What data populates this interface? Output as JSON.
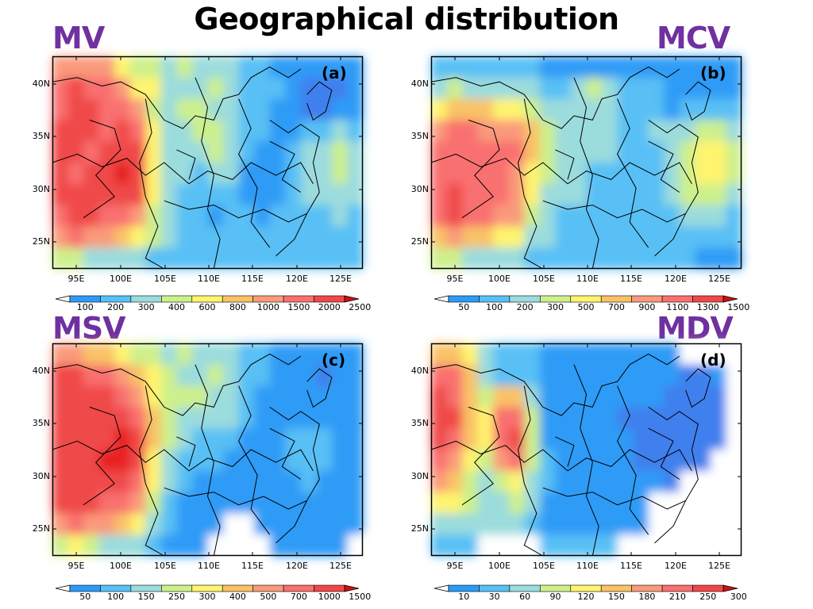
{
  "page": {
    "title": "Geographical distribution"
  },
  "colors": {
    "label": "#7030a0"
  },
  "lat_ticks": [
    "40N",
    "35N",
    "30N",
    "25N"
  ],
  "lon_ticks": [
    "95E",
    "100E",
    "105E",
    "110E",
    "115E",
    "120E",
    "125E"
  ],
  "panels": [
    {
      "id": "a",
      "var_label": "MV",
      "panel_tag": "(a)",
      "colorbar": {
        "ticks": [
          "100",
          "200",
          "300",
          "400",
          "600",
          "800",
          "1000",
          "1500",
          "2000",
          "2500"
        ]
      },
      "colors": [
        "#3f7fee",
        "#2d9bf6",
        "#59c0f5",
        "#9bdcdd",
        "#cdf08b",
        "#fff46e",
        "#f9c266",
        "#fa9a7c",
        "#f97070",
        "#f04848",
        "#e82020"
      ],
      "below_color": "#3b5cd6",
      "above_color": "#d01010",
      "field": [
        [
          7,
          7,
          7,
          7,
          5,
          4,
          4,
          3,
          4,
          3,
          3,
          3,
          2,
          2,
          1,
          1,
          1,
          1,
          1,
          1
        ],
        [
          8,
          9,
          8,
          8,
          7,
          5,
          5,
          3,
          3,
          3,
          4,
          3,
          2,
          2,
          2,
          1,
          0,
          0,
          0,
          1
        ],
        [
          8,
          9,
          9,
          8,
          8,
          7,
          4,
          3,
          4,
          4,
          3,
          3,
          2,
          2,
          1,
          1,
          0,
          0,
          1,
          1
        ],
        [
          9,
          9,
          9,
          8,
          9,
          8,
          5,
          3,
          3,
          4,
          4,
          3,
          2,
          2,
          1,
          1,
          2,
          2,
          3,
          2
        ],
        [
          9,
          9,
          8,
          9,
          9,
          9,
          5,
          3,
          3,
          3,
          4,
          3,
          2,
          1,
          1,
          2,
          3,
          3,
          4,
          3
        ],
        [
          9,
          8,
          9,
          9,
          10,
          9,
          5,
          3,
          3,
          2,
          3,
          3,
          1,
          1,
          1,
          2,
          3,
          3,
          4,
          3
        ],
        [
          9,
          9,
          9,
          9,
          9,
          9,
          5,
          3,
          2,
          2,
          2,
          2,
          1,
          1,
          1,
          2,
          3,
          3,
          3,
          3
        ],
        [
          8,
          9,
          9,
          8,
          8,
          7,
          4,
          3,
          2,
          2,
          1,
          2,
          2,
          1,
          2,
          2,
          2,
          2,
          3,
          2
        ],
        [
          7,
          8,
          7,
          7,
          6,
          5,
          4,
          3,
          2,
          2,
          2,
          2,
          2,
          2,
          2,
          2,
          2,
          2,
          2,
          2
        ],
        [
          4,
          4,
          3,
          3,
          3,
          3,
          2,
          2,
          2,
          2,
          2,
          2,
          2,
          2,
          2,
          2,
          2,
          2,
          2,
          2
        ]
      ]
    },
    {
      "id": "b",
      "var_label": "MCV",
      "panel_tag": "(b)",
      "colorbar": {
        "ticks": [
          "50",
          "100",
          "200",
          "300",
          "500",
          "700",
          "900",
          "1100",
          "1300",
          "1500"
        ]
      },
      "colors": [
        "#3f7fee",
        "#2d9bf6",
        "#59c0f5",
        "#9bdcdd",
        "#cdf08b",
        "#fff46e",
        "#f9c266",
        "#fa9a7c",
        "#f97070",
        "#f04848",
        "#e82020"
      ],
      "below_color": "#3b5cd6",
      "above_color": "#d01010",
      "field": [
        [
          2,
          2,
          2,
          2,
          2,
          2,
          2,
          1,
          1,
          1,
          1,
          1,
          1,
          1,
          1,
          1,
          1,
          1,
          1,
          1
        ],
        [
          3,
          4,
          3,
          3,
          3,
          3,
          3,
          2,
          2,
          3,
          4,
          3,
          2,
          2,
          2,
          1,
          1,
          1,
          1,
          1
        ],
        [
          5,
          6,
          6,
          6,
          5,
          5,
          4,
          3,
          3,
          3,
          3,
          3,
          2,
          2,
          2,
          1,
          2,
          2,
          2,
          2
        ],
        [
          7,
          8,
          8,
          7,
          7,
          7,
          6,
          4,
          3,
          3,
          3,
          3,
          2,
          2,
          3,
          3,
          3,
          4,
          4,
          3
        ],
        [
          8,
          8,
          8,
          8,
          8,
          8,
          6,
          4,
          3,
          3,
          3,
          3,
          2,
          2,
          2,
          3,
          4,
          5,
          5,
          4
        ],
        [
          8,
          8,
          8,
          8,
          8,
          7,
          5,
          4,
          3,
          3,
          2,
          2,
          2,
          2,
          2,
          3,
          4,
          5,
          5,
          4
        ],
        [
          8,
          9,
          8,
          8,
          8,
          7,
          5,
          3,
          3,
          3,
          2,
          2,
          2,
          2,
          2,
          3,
          4,
          4,
          4,
          3
        ],
        [
          8,
          9,
          8,
          8,
          7,
          7,
          4,
          3,
          2,
          2,
          2,
          2,
          2,
          2,
          2,
          2,
          3,
          3,
          3,
          2
        ],
        [
          6,
          7,
          6,
          6,
          5,
          5,
          3,
          3,
          2,
          2,
          2,
          2,
          2,
          2,
          2,
          2,
          2,
          2,
          2,
          2
        ],
        [
          4,
          4,
          3,
          3,
          3,
          3,
          2,
          2,
          2,
          2,
          2,
          2,
          2,
          2,
          2,
          2,
          2,
          1,
          1,
          1
        ]
      ]
    },
    {
      "id": "c",
      "var_label": "MSV",
      "panel_tag": "(c)",
      "colorbar": {
        "ticks": [
          "50",
          "100",
          "150",
          "250",
          "300",
          "400",
          "500",
          "700",
          "1000",
          "1500"
        ]
      },
      "colors": [
        "#3f7fee",
        "#2d9bf6",
        "#59c0f5",
        "#9bdcdd",
        "#cdf08b",
        "#fff46e",
        "#f9c266",
        "#fa9a7c",
        "#f97070",
        "#f04848",
        "#e82020"
      ],
      "below_color": "#3b5cd6",
      "above_color": "#d01010",
      "field": [
        [
          7,
          7,
          6,
          6,
          5,
          4,
          4,
          3,
          4,
          3,
          3,
          3,
          2,
          2,
          1,
          1,
          1,
          1,
          1,
          1
        ],
        [
          9,
          9,
          8,
          8,
          7,
          6,
          5,
          4,
          3,
          3,
          4,
          3,
          2,
          2,
          1,
          1,
          1,
          0,
          1,
          1
        ],
        [
          9,
          9,
          9,
          9,
          8,
          7,
          5,
          4,
          4,
          4,
          3,
          3,
          2,
          1,
          1,
          1,
          1,
          1,
          1,
          1
        ],
        [
          9,
          9,
          9,
          9,
          9,
          8,
          6,
          4,
          3,
          3,
          3,
          3,
          2,
          1,
          1,
          1,
          1,
          1,
          1,
          1
        ],
        [
          9,
          9,
          9,
          9,
          10,
          9,
          6,
          4,
          3,
          2,
          2,
          2,
          1,
          1,
          1,
          2,
          2,
          2,
          1,
          1
        ],
        [
          9,
          9,
          9,
          10,
          10,
          9,
          5,
          3,
          2,
          2,
          2,
          1,
          1,
          1,
          1,
          2,
          2,
          2,
          1,
          1
        ],
        [
          9,
          9,
          9,
          9,
          9,
          8,
          5,
          3,
          2,
          1,
          1,
          1,
          1,
          1,
          1,
          1,
          2,
          1,
          1,
          1
        ],
        [
          9,
          9,
          9,
          8,
          8,
          7,
          4,
          2,
          1,
          1,
          1,
          1,
          1,
          1,
          1,
          1,
          1,
          1,
          1,
          1
        ],
        [
          7,
          8,
          7,
          7,
          6,
          5,
          3,
          2,
          1,
          1,
          1,
          -1,
          -1,
          1,
          1,
          1,
          1,
          1,
          1,
          1
        ],
        [
          4,
          5,
          4,
          3,
          3,
          3,
          2,
          1,
          1,
          1,
          -1,
          -1,
          -1,
          -1,
          1,
          1,
          1,
          1,
          1,
          -1
        ]
      ]
    },
    {
      "id": "d",
      "var_label": "MDV",
      "panel_tag": "(d)",
      "colorbar": {
        "ticks": [
          "10",
          "30",
          "60",
          "90",
          "120",
          "150",
          "180",
          "210",
          "250",
          "300"
        ]
      },
      "colors": [
        "#3f7fee",
        "#2d9bf6",
        "#59c0f5",
        "#9bdcdd",
        "#cdf08b",
        "#fff46e",
        "#f9c266",
        "#fa9a7c",
        "#f97070",
        "#f04848",
        "#e82020"
      ],
      "below_color": "#3b5cd6",
      "above_color": "#d01010",
      "field": [
        [
          6,
          6,
          5,
          3,
          2,
          2,
          2,
          1,
          1,
          1,
          1,
          1,
          1,
          1,
          1,
          1,
          -1,
          -1,
          -1,
          -1
        ],
        [
          8,
          8,
          6,
          3,
          2,
          2,
          2,
          1,
          1,
          1,
          1,
          1,
          1,
          1,
          1,
          1,
          0,
          0,
          1,
          -1
        ],
        [
          9,
          8,
          6,
          4,
          6,
          6,
          3,
          1,
          1,
          1,
          1,
          1,
          1,
          1,
          1,
          0,
          0,
          0,
          0,
          -1
        ],
        [
          9,
          9,
          6,
          5,
          8,
          8,
          4,
          1,
          1,
          1,
          1,
          1,
          0,
          0,
          0,
          0,
          0,
          0,
          0,
          -1
        ],
        [
          9,
          8,
          6,
          5,
          8,
          9,
          4,
          1,
          1,
          1,
          1,
          1,
          1,
          0,
          0,
          0,
          0,
          0,
          0,
          -1
        ],
        [
          8,
          7,
          5,
          4,
          7,
          8,
          4,
          2,
          1,
          1,
          1,
          1,
          1,
          0,
          0,
          0,
          0,
          0,
          -1,
          -1
        ],
        [
          7,
          6,
          4,
          3,
          4,
          5,
          3,
          2,
          1,
          1,
          1,
          1,
          1,
          1,
          1,
          0,
          -1,
          -1,
          -1,
          -1
        ],
        [
          5,
          5,
          4,
          3,
          3,
          4,
          3,
          1,
          1,
          1,
          1,
          1,
          1,
          1,
          -1,
          -1,
          -1,
          -1,
          -1,
          -1
        ],
        [
          3,
          3,
          3,
          3,
          3,
          3,
          2,
          1,
          1,
          1,
          1,
          1,
          1,
          1,
          -1,
          -1,
          -1,
          -1,
          -1,
          -1
        ],
        [
          2,
          2,
          2,
          -1,
          -1,
          -1,
          -1,
          2,
          2,
          2,
          2,
          2,
          -1,
          -1,
          -1,
          -1,
          -1,
          -1,
          -1,
          -1
        ]
      ]
    }
  ]
}
